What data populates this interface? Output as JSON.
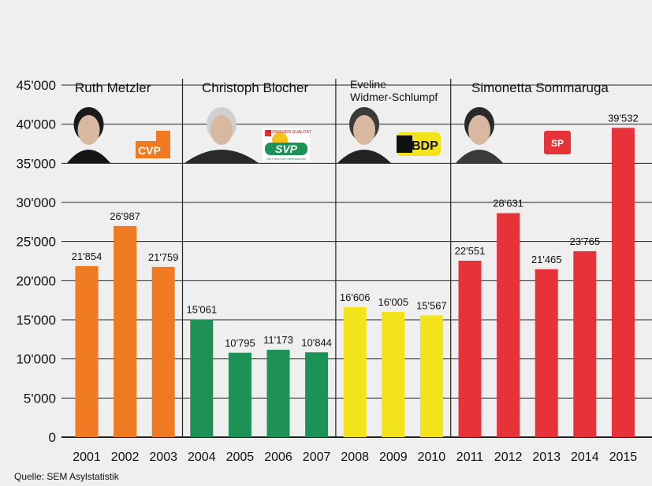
{
  "chart_data": {
    "type": "bar",
    "categories": [
      "2001",
      "2002",
      "2003",
      "2004",
      "2005",
      "2006",
      "2007",
      "2008",
      "2009",
      "2010",
      "2011",
      "2012",
      "2013",
      "2014",
      "2015"
    ],
    "values": [
      21854,
      26987,
      21759,
      15061,
      10795,
      11173,
      10844,
      16606,
      16005,
      15567,
      22551,
      28631,
      21465,
      23765,
      39532
    ],
    "value_labels": [
      "21'854",
      "26'987",
      "21'759",
      "15'061",
      "10'795",
      "11'173",
      "10'844",
      "16'606",
      "16'005",
      "15'567",
      "22'551",
      "28'631",
      "21'465",
      "23'765",
      "39'532"
    ],
    "ylim": [
      0,
      45000
    ],
    "y_ticks": [
      0,
      5000,
      10000,
      15000,
      20000,
      25000,
      30000,
      35000,
      40000,
      45000
    ],
    "y_tick_labels": [
      "0",
      "5'000",
      "10'000",
      "15'000",
      "20'000",
      "25'000",
      "30'000",
      "35'000",
      "40'000",
      "45'000"
    ],
    "grid": true,
    "groups": [
      {
        "name": "Ruth Metzler",
        "name_lines": [
          "Ruth Metzler"
        ],
        "party": "CVP",
        "color": "#f07a21",
        "first": 0,
        "last": 2
      },
      {
        "name": "Christoph Blocher",
        "name_lines": [
          "Christoph Blocher"
        ],
        "party": "SVP",
        "color": "#1e9156",
        "first": 3,
        "last": 6
      },
      {
        "name": "Eveline Widmer-Schlumpf",
        "name_lines": [
          "Eveline",
          "Widmer-Schlumpf"
        ],
        "party": "BDP",
        "color": "#f3e31a",
        "first": 7,
        "last": 9
      },
      {
        "name": "Simonetta Sommaruga",
        "name_lines": [
          "Simonetta Sommaruga"
        ],
        "party": "SP",
        "color": "#e8323a",
        "first": 10,
        "last": 14
      }
    ]
  },
  "logos": {
    "cvp": "CVP",
    "svp": "SVP",
    "svp_small_top": "SCHWEIZER QUALITÄT",
    "svp_small_bottom": "Die Partei des Mittelstandes",
    "bdp": "BDP",
    "sp": "SP"
  },
  "source": "Quelle: SEM Asylstatistik"
}
